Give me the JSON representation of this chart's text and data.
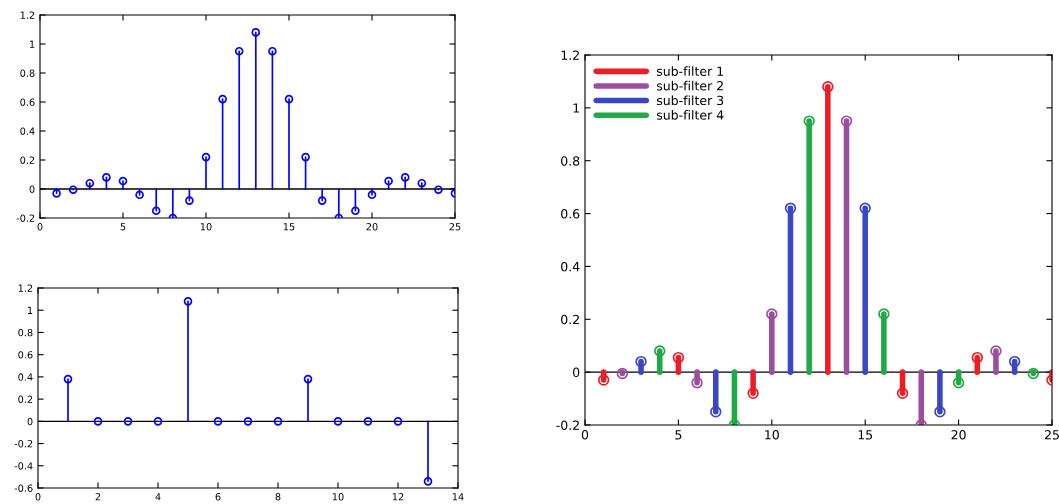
{
  "chart_data": [
    {
      "type": "lollipop",
      "x": [
        1,
        2,
        3,
        4,
        5,
        6,
        7,
        8,
        9,
        10,
        11,
        12,
        13,
        14,
        15,
        16,
        17,
        18,
        19,
        20,
        21,
        22,
        23,
        24,
        25
      ],
      "series": [
        {
          "color": "#0000ff",
          "values": [
            -0.03,
            -0.005,
            0.04,
            0.08,
            0.055,
            -0.04,
            -0.15,
            -0.2,
            -0.08,
            0.22,
            0.62,
            0.95,
            1.08,
            0.95,
            0.62,
            0.22,
            -0.08,
            -0.2,
            -0.15,
            -0.04,
            0.055,
            0.08,
            0.04,
            -0.005,
            -0.03
          ]
        }
      ],
      "xlim": [
        0,
        25
      ],
      "xticks": [
        0,
        5,
        10,
        15,
        20,
        25
      ],
      "ylim": [
        -0.2,
        1.2
      ],
      "yticks": [
        -0.2,
        0,
        0.2,
        0.4,
        0.6,
        0.8,
        1,
        1.2
      ],
      "marker": "circle",
      "grid": false,
      "legend": false,
      "ref_lines": [
        {
          "axis": "y",
          "value": 0,
          "color": "#000000"
        }
      ]
    },
    {
      "type": "lollipop",
      "x": [
        1,
        2,
        3,
        4,
        5,
        6,
        7,
        8,
        9,
        10,
        11,
        12,
        13
      ],
      "series": [
        {
          "color": "#0000ff",
          "values": [
            0.38,
            0,
            0,
            0,
            1.08,
            0,
            0,
            0,
            0.38,
            0,
            0,
            0,
            -0.54
          ]
        }
      ],
      "xlim": [
        0,
        14
      ],
      "xticks": [
        0,
        2,
        4,
        6,
        8,
        10,
        12,
        14
      ],
      "ylim": [
        -0.6,
        1.2
      ],
      "yticks": [
        -0.6,
        -0.4,
        -0.2,
        0,
        0.2,
        0.4,
        0.6,
        0.8,
        1,
        1.2
      ],
      "marker": "circle",
      "grid": false,
      "legend": false,
      "ref_lines": [
        {
          "axis": "y",
          "value": 0,
          "color": "#000000"
        }
      ]
    },
    {
      "type": "lollipop",
      "marker": "circle",
      "series": [
        {
          "name": "sub-filter 1",
          "color": "#ee1c25",
          "x": [
            1,
            5,
            9,
            13,
            17,
            21,
            25
          ],
          "values": [
            -0.03,
            0.055,
            -0.08,
            1.08,
            -0.08,
            0.055,
            -0.03
          ]
        },
        {
          "name": "sub-filter 2",
          "color": "#9b4ea0",
          "x": [
            2,
            6,
            10,
            14,
            18,
            22
          ],
          "values": [
            -0.005,
            -0.04,
            0.22,
            0.95,
            -0.2,
            0.08
          ]
        },
        {
          "name": "sub-filter 3",
          "color": "#3a47c4",
          "x": [
            3,
            7,
            11,
            15,
            19,
            23
          ],
          "values": [
            0.04,
            -0.15,
            0.62,
            0.62,
            -0.15,
            0.04
          ]
        },
        {
          "name": "sub-filter 4",
          "color": "#1faa45",
          "x": [
            4,
            8,
            12,
            16,
            20,
            24
          ],
          "values": [
            0.08,
            -0.2,
            0.95,
            0.22,
            -0.04,
            -0.005
          ]
        }
      ],
      "xlim": [
        0,
        25
      ],
      "xticks": [
        0,
        5,
        10,
        15,
        20,
        25
      ],
      "ylim": [
        -0.2,
        1.2
      ],
      "yticks": [
        -0.2,
        0,
        0.2,
        0.4,
        0.6,
        0.8,
        1,
        1.2
      ],
      "grid": false,
      "legend": "top left",
      "ref_lines": [
        {
          "axis": "y",
          "value": 0,
          "color": "#000000"
        }
      ]
    }
  ]
}
